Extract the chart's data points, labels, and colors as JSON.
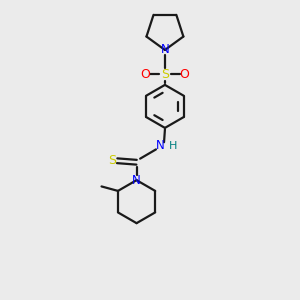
{
  "background_color": "#ebebeb",
  "bond_color": "#1a1a1a",
  "N_color": "#0000ff",
  "S_color": "#cccc00",
  "O_color": "#ff0000",
  "H_color": "#008080",
  "line_width": 1.6,
  "figsize": [
    3.0,
    3.0
  ],
  "dpi": 100,
  "xlim": [
    0,
    10
  ],
  "ylim": [
    0,
    10
  ]
}
